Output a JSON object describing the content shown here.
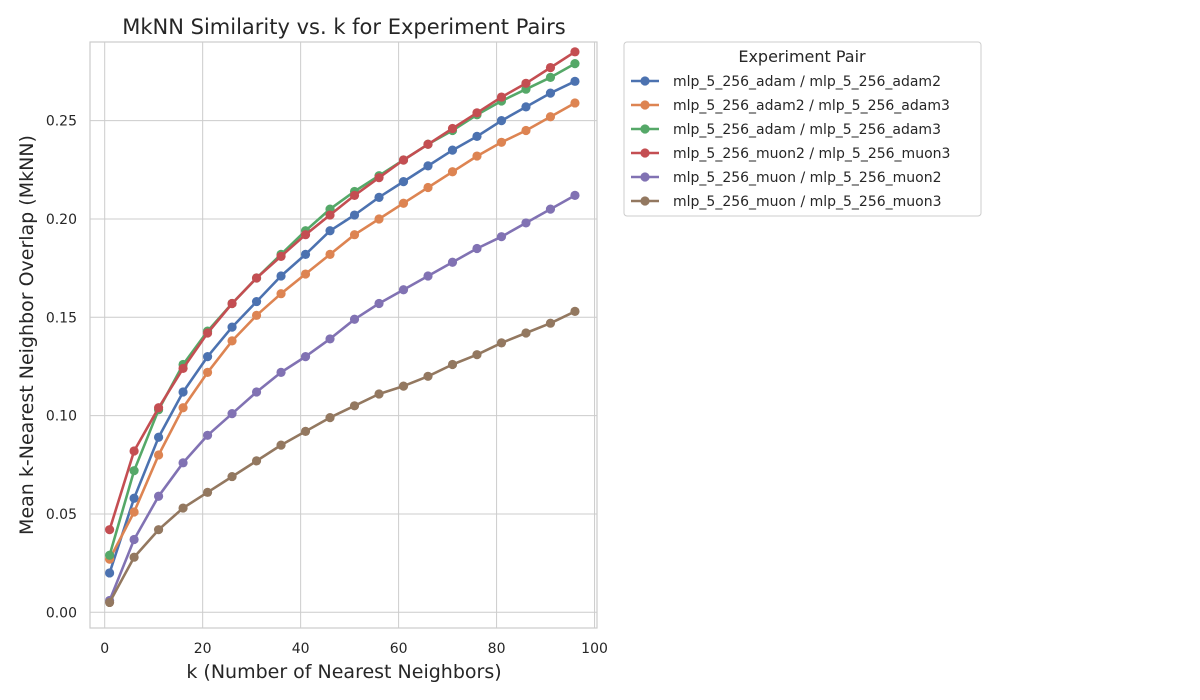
{
  "chart_data": {
    "type": "line",
    "title": "MkNN Similarity vs. k for Experiment Pairs",
    "xlabel": "k (Number of Nearest Neighbors)",
    "ylabel": "Mean k-Nearest Neighbor Overlap (MkNN)",
    "xlim": [
      -3,
      100.5
    ],
    "ylim": [
      -0.008,
      0.29
    ],
    "xticks": [
      0,
      20,
      40,
      60,
      80,
      100
    ],
    "yticks": [
      0.0,
      0.05,
      0.1,
      0.15,
      0.2,
      0.25
    ],
    "ytick_labels": [
      "0.00",
      "0.05",
      "0.10",
      "0.15",
      "0.20",
      "0.25"
    ],
    "grid": true,
    "legend": {
      "title": "Experiment Pair",
      "placement": "outside-top-right"
    },
    "x": [
      1,
      6,
      11,
      16,
      21,
      26,
      31,
      36,
      41,
      46,
      51,
      56,
      61,
      66,
      71,
      76,
      81,
      86,
      91,
      96
    ],
    "series": [
      {
        "name": "mlp_5_256_adam / mlp_5_256_adam2",
        "color": "#4c72b0",
        "values": [
          0.02,
          0.058,
          0.089,
          0.112,
          0.13,
          0.145,
          0.158,
          0.171,
          0.182,
          0.194,
          0.202,
          0.211,
          0.219,
          0.227,
          0.235,
          0.242,
          0.25,
          0.257,
          0.264,
          0.27
        ]
      },
      {
        "name": "mlp_5_256_adam2 / mlp_5_256_adam3",
        "color": "#dd8452",
        "values": [
          0.027,
          0.051,
          0.08,
          0.104,
          0.122,
          0.138,
          0.151,
          0.162,
          0.172,
          0.182,
          0.192,
          0.2,
          0.208,
          0.216,
          0.224,
          0.232,
          0.239,
          0.245,
          0.252,
          0.259
        ]
      },
      {
        "name": "mlp_5_256_adam / mlp_5_256_adam3",
        "color": "#55a868",
        "values": [
          0.029,
          0.072,
          0.103,
          0.126,
          0.143,
          0.157,
          0.17,
          0.182,
          0.194,
          0.205,
          0.214,
          0.222,
          0.23,
          0.238,
          0.245,
          0.253,
          0.26,
          0.266,
          0.272,
          0.279
        ]
      },
      {
        "name": "mlp_5_256_muon2 / mlp_5_256_muon3",
        "color": "#c44e52",
        "values": [
          0.042,
          0.082,
          0.104,
          0.124,
          0.142,
          0.157,
          0.17,
          0.181,
          0.192,
          0.202,
          0.212,
          0.221,
          0.23,
          0.238,
          0.246,
          0.254,
          0.262,
          0.269,
          0.277,
          0.285
        ]
      },
      {
        "name": "mlp_5_256_muon / mlp_5_256_muon2",
        "color": "#8172b3",
        "values": [
          0.006,
          0.037,
          0.059,
          0.076,
          0.09,
          0.101,
          0.112,
          0.122,
          0.13,
          0.139,
          0.149,
          0.157,
          0.164,
          0.171,
          0.178,
          0.185,
          0.191,
          0.198,
          0.205,
          0.212
        ]
      },
      {
        "name": "mlp_5_256_muon / mlp_5_256_muon3",
        "color": "#937860",
        "values": [
          0.005,
          0.028,
          0.042,
          0.053,
          0.061,
          0.069,
          0.077,
          0.085,
          0.092,
          0.099,
          0.105,
          0.111,
          0.115,
          0.12,
          0.126,
          0.131,
          0.137,
          0.142,
          0.147,
          0.153
        ]
      }
    ]
  }
}
